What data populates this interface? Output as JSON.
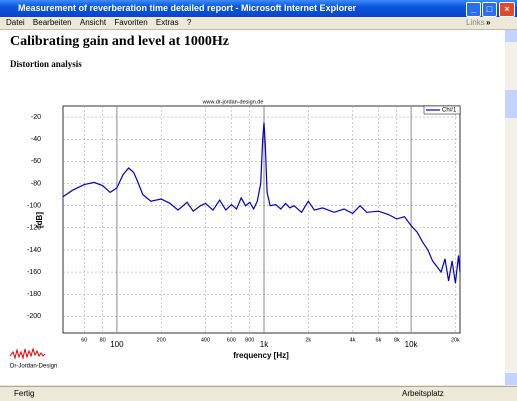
{
  "window": {
    "title": "Measurement of reverberation time detailed report - Microsoft Internet Explorer",
    "menu": [
      "Datei",
      "Bearbeiten",
      "Ansicht",
      "Favoriten",
      "Extras",
      "?"
    ],
    "links": "Links",
    "chevron": "»"
  },
  "page": {
    "heading": "Calibrating gain and level at 1000Hz",
    "subheading": "Distortion analysis",
    "logo": "Dr-Jordan-Design"
  },
  "status": {
    "left": "Fertig",
    "right": "Arbeitsplatz"
  },
  "chart_data": {
    "type": "line",
    "annotation": "www.dr-jordan-design.de",
    "xlabel": "frequency [Hz]",
    "ylabel": "[dB]",
    "xscale": "log",
    "xlim": [
      43,
      21500
    ],
    "ylim": [
      -215,
      -10
    ],
    "grid": true,
    "legend": "upper right",
    "xticks": [
      60,
      80,
      100,
      200,
      400,
      600,
      800,
      {
        "value": 1000,
        "label": "1k"
      },
      {
        "value": 2000,
        "label": "2k"
      },
      {
        "value": 4000,
        "label": "4k"
      },
      {
        "value": 6000,
        "label": "6k"
      },
      {
        "value": 8000,
        "label": "8k"
      },
      {
        "value": 10000,
        "label": "10k"
      },
      {
        "value": 20000,
        "label": "20k"
      }
    ],
    "yticks": [
      -20,
      -40,
      -60,
      -80,
      -100,
      -120,
      -140,
      -160,
      -180,
      -200
    ],
    "x": [
      43,
      50,
      60,
      70,
      80,
      90,
      100,
      110,
      120,
      130,
      140,
      150,
      170,
      200,
      230,
      260,
      300,
      330,
      370,
      400,
      450,
      500,
      550,
      600,
      650,
      700,
      750,
      800,
      850,
      900,
      950,
      980,
      1000,
      1020,
      1050,
      1100,
      1200,
      1300,
      1400,
      1500,
      1600,
      1800,
      2000,
      2200,
      2500,
      3000,
      3500,
      4000,
      4500,
      5000,
      6000,
      7000,
      8000,
      9000,
      10000,
      11000,
      12000,
      13000,
      14000,
      15000,
      16000,
      17000,
      18000,
      19000,
      20000,
      21000,
      21500
    ],
    "series": [
      {
        "name": "Ch#1",
        "color": "#0000cc",
        "values": [
          -92,
          -86,
          -81,
          -79,
          -82,
          -88,
          -84,
          -72,
          -66,
          -70,
          -80,
          -90,
          -96,
          -94,
          -98,
          -104,
          -97,
          -105,
          -100,
          -98,
          -104,
          -95,
          -104,
          -99,
          -103,
          -93,
          -100,
          -97,
          -103,
          -96,
          -80,
          -40,
          -25,
          -45,
          -88,
          -100,
          -99,
          -103,
          -98,
          -102,
          -100,
          -106,
          -96,
          -104,
          -102,
          -106,
          -103,
          -107,
          -100,
          -106,
          -105,
          -108,
          -112,
          -110,
          -118,
          -124,
          -133,
          -140,
          -150,
          -155,
          -160,
          -148,
          -168,
          -150,
          -170,
          -145,
          -160
        ]
      }
    ]
  }
}
